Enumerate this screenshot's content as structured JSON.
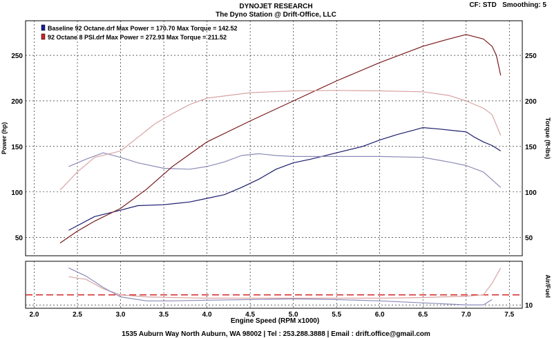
{
  "header": {
    "title": "DYNOJET RESEARCH",
    "subtitle": "The Dyno Station @ Drift-Office, LLC",
    "cf_label": "CF: STD",
    "smoothing_label": "Smoothing: 5"
  },
  "footer": {
    "address": "1535 Auburn Way North Auburn, WA 98002 | Tel : 253.288.3888 | Email : drift.office@gmail.com"
  },
  "colors": {
    "baseline_power": "#1a1a6e",
    "baseline_torque": "#8a8ab8",
    "boost_power": "#7a1a1a",
    "boost_torque": "#d9a3a3",
    "afr_target": "#cc0000",
    "grid": "#000000"
  },
  "chart_data": [
    {
      "type": "line",
      "title": "",
      "xlabel": "Engine Speed (RPM x1000)",
      "ylabel": "Power (hp)",
      "y2label": "Torque (ft-lbs)",
      "xlim": [
        1.9,
        7.65
      ],
      "ylim": [
        30,
        288
      ],
      "xticks": [
        2.0,
        2.5,
        3.0,
        3.5,
        4.0,
        4.5,
        5.0,
        5.5,
        6.0,
        6.5,
        7.0,
        7.5
      ],
      "xtick_labels": [
        "2.0",
        "2.5",
        "3.0",
        "3.5",
        "4.0",
        "4.5",
        "5.0",
        "5.5",
        "6.0",
        "6.5",
        "7.0",
        "7.5"
      ],
      "yticks": [
        50,
        100,
        150,
        200,
        250
      ],
      "ytick_labels": [
        "50",
        "100",
        "150",
        "200",
        "250"
      ],
      "grid": true,
      "legend_position": "top-left",
      "legend": [
        {
          "text": "Baseline 92 Octane.drf Max Power = 170.70      Max Torque = 142.52",
          "color": "#1a1a9e"
        },
        {
          "text": "92 Octane 8 PSI.drf Max Power = 272.93      Max Torque = 211.52",
          "color": "#cc2222"
        }
      ],
      "series": [
        {
          "color": "#1a1a6e",
          "x": [
            2.4,
            2.5,
            2.7,
            3.0,
            3.2,
            3.5,
            3.8,
            4.0,
            4.2,
            4.4,
            4.6,
            4.8,
            5.0,
            5.2,
            5.5,
            5.8,
            6.0,
            6.2,
            6.4,
            6.5,
            6.7,
            6.9,
            7.0,
            7.1,
            7.2,
            7.3,
            7.4
          ],
          "y": [
            58,
            63,
            73,
            80,
            85,
            86,
            89,
            93,
            97,
            105,
            114,
            125,
            132,
            136,
            143,
            150,
            157,
            163,
            168,
            170.7,
            169,
            167,
            166,
            160,
            155,
            151,
            145
          ]
        },
        {
          "color": "#8a8ab8",
          "x": [
            2.4,
            2.6,
            2.8,
            3.0,
            3.2,
            3.5,
            3.8,
            4.0,
            4.2,
            4.4,
            4.6,
            4.8,
            5.0,
            5.5,
            6.0,
            6.5,
            6.8,
            7.0,
            7.2,
            7.4
          ],
          "y": [
            128,
            136,
            143,
            138,
            132,
            126,
            125,
            128,
            133,
            140,
            142,
            140,
            139,
            139,
            139,
            138,
            133,
            129,
            122,
            105
          ]
        },
        {
          "color": "#7a1a1a",
          "x": [
            2.3,
            2.5,
            2.7,
            3.0,
            3.3,
            3.6,
            4.0,
            4.5,
            5.0,
            5.5,
            6.0,
            6.5,
            6.8,
            7.0,
            7.2,
            7.3,
            7.35,
            7.4
          ],
          "y": [
            44,
            57,
            68,
            82,
            103,
            128,
            155,
            178,
            200,
            222,
            242,
            260,
            268,
            272.9,
            268,
            260,
            250,
            228
          ]
        },
        {
          "color": "#d9a3a3",
          "x": [
            2.3,
            2.5,
            2.7,
            3.0,
            3.2,
            3.4,
            3.6,
            3.8,
            4.0,
            4.5,
            5.0,
            5.5,
            6.0,
            6.5,
            6.8,
            7.0,
            7.2,
            7.3,
            7.4
          ],
          "y": [
            102,
            122,
            138,
            145,
            160,
            175,
            186,
            196,
            203,
            209,
            211,
            211.5,
            211,
            210,
            206,
            200,
            192,
            185,
            162
          ]
        }
      ]
    },
    {
      "type": "line",
      "title": "",
      "ylabel": "Air/Fuel",
      "xlim": [
        1.9,
        7.65
      ],
      "ylim": [
        9.5,
        16.5
      ],
      "yticks": [
        10
      ],
      "ytick_labels": [
        "10"
      ],
      "grid": true,
      "series": [
        {
          "color": "#cc0000",
          "x": [
            1.9,
            7.65
          ],
          "y": [
            11.5,
            11.5
          ]
        },
        {
          "color": "#d9a3a3",
          "x": [
            2.4,
            2.6,
            2.8,
            3.0,
            3.3,
            3.6,
            4.0,
            4.5,
            5.0,
            5.5,
            6.0,
            6.5,
            7.0,
            7.2,
            7.3,
            7.4
          ],
          "y": [
            14.2,
            13.8,
            12.4,
            11.5,
            11.2,
            11.1,
            11.0,
            11.0,
            11.0,
            11.0,
            11.0,
            11.1,
            11.3,
            11.5,
            13.2,
            15.5
          ]
        },
        {
          "color": "#8a8ab8",
          "x": [
            2.4,
            2.6,
            2.8,
            3.0,
            3.3,
            3.6,
            4.0,
            4.5,
            5.0,
            5.5,
            6.0,
            6.5,
            7.0,
            7.2,
            7.3
          ],
          "y": [
            15.5,
            14.3,
            12.6,
            11.2,
            10.6,
            10.6,
            10.7,
            10.8,
            10.9,
            10.8,
            10.6,
            10.3,
            10.0,
            10.0,
            10.8
          ]
        }
      ]
    }
  ]
}
